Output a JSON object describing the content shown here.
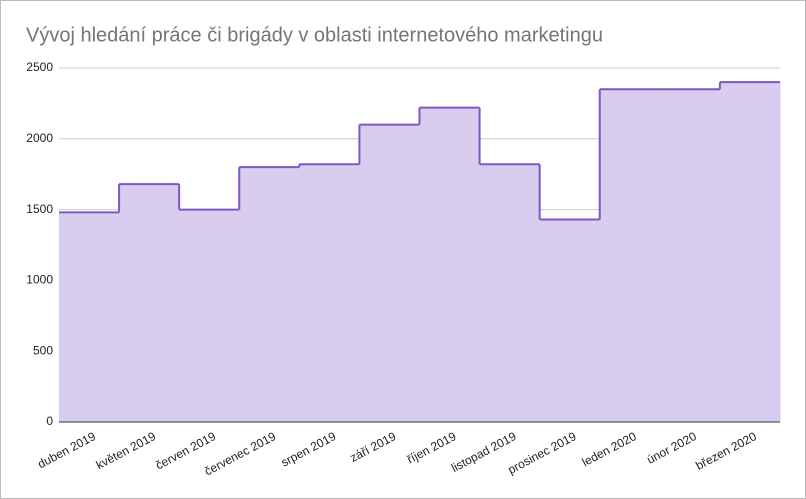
{
  "chart_data": {
    "type": "area",
    "step": true,
    "title": "Vývoj hledání práce či brigády v oblasti internetového marketingu",
    "categories": [
      "duben 2019",
      "květen 2019",
      "červen 2019",
      "červenec 2019",
      "srpen 2019",
      "září 2019",
      "říjen 2019",
      "listopad 2019",
      "prosinec 2019",
      "leden 2020",
      "únor 2020",
      "březen 2020"
    ],
    "values": [
      1480,
      1680,
      1500,
      1800,
      1820,
      2100,
      2220,
      1820,
      1430,
      2350,
      2350,
      2400
    ],
    "color": "#7e57c2",
    "fill": "#d9cdef",
    "ylim": [
      0,
      2500
    ],
    "yticks": [
      0,
      500,
      1000,
      1500,
      2000,
      2500
    ],
    "grid": true
  }
}
